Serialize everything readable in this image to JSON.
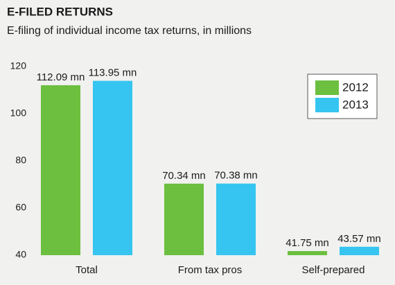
{
  "chart_data": {
    "type": "bar",
    "title": "E-FILED RETURNS",
    "subtitle": "E-filing of individual income tax returns, in millions",
    "categories": [
      "Total",
      "From tax pros",
      "Self-prepared"
    ],
    "series": [
      {
        "name": "2012",
        "color": "#6cbf3f",
        "values": [
          112.09,
          70.34,
          41.75
        ],
        "value_labels": [
          "112.09 mn",
          "70.34 mn",
          "41.75 mn"
        ]
      },
      {
        "name": "2013",
        "color": "#36c5f0",
        "values": [
          113.95,
          70.38,
          43.57
        ],
        "value_labels": [
          "113.95 mn",
          "70.38 mn",
          "43.57 mn"
        ]
      }
    ],
    "ylim": [
      40,
      120
    ],
    "yticks": [
      40,
      60,
      80,
      100,
      120
    ],
    "grid": false,
    "legend": "top-right"
  }
}
